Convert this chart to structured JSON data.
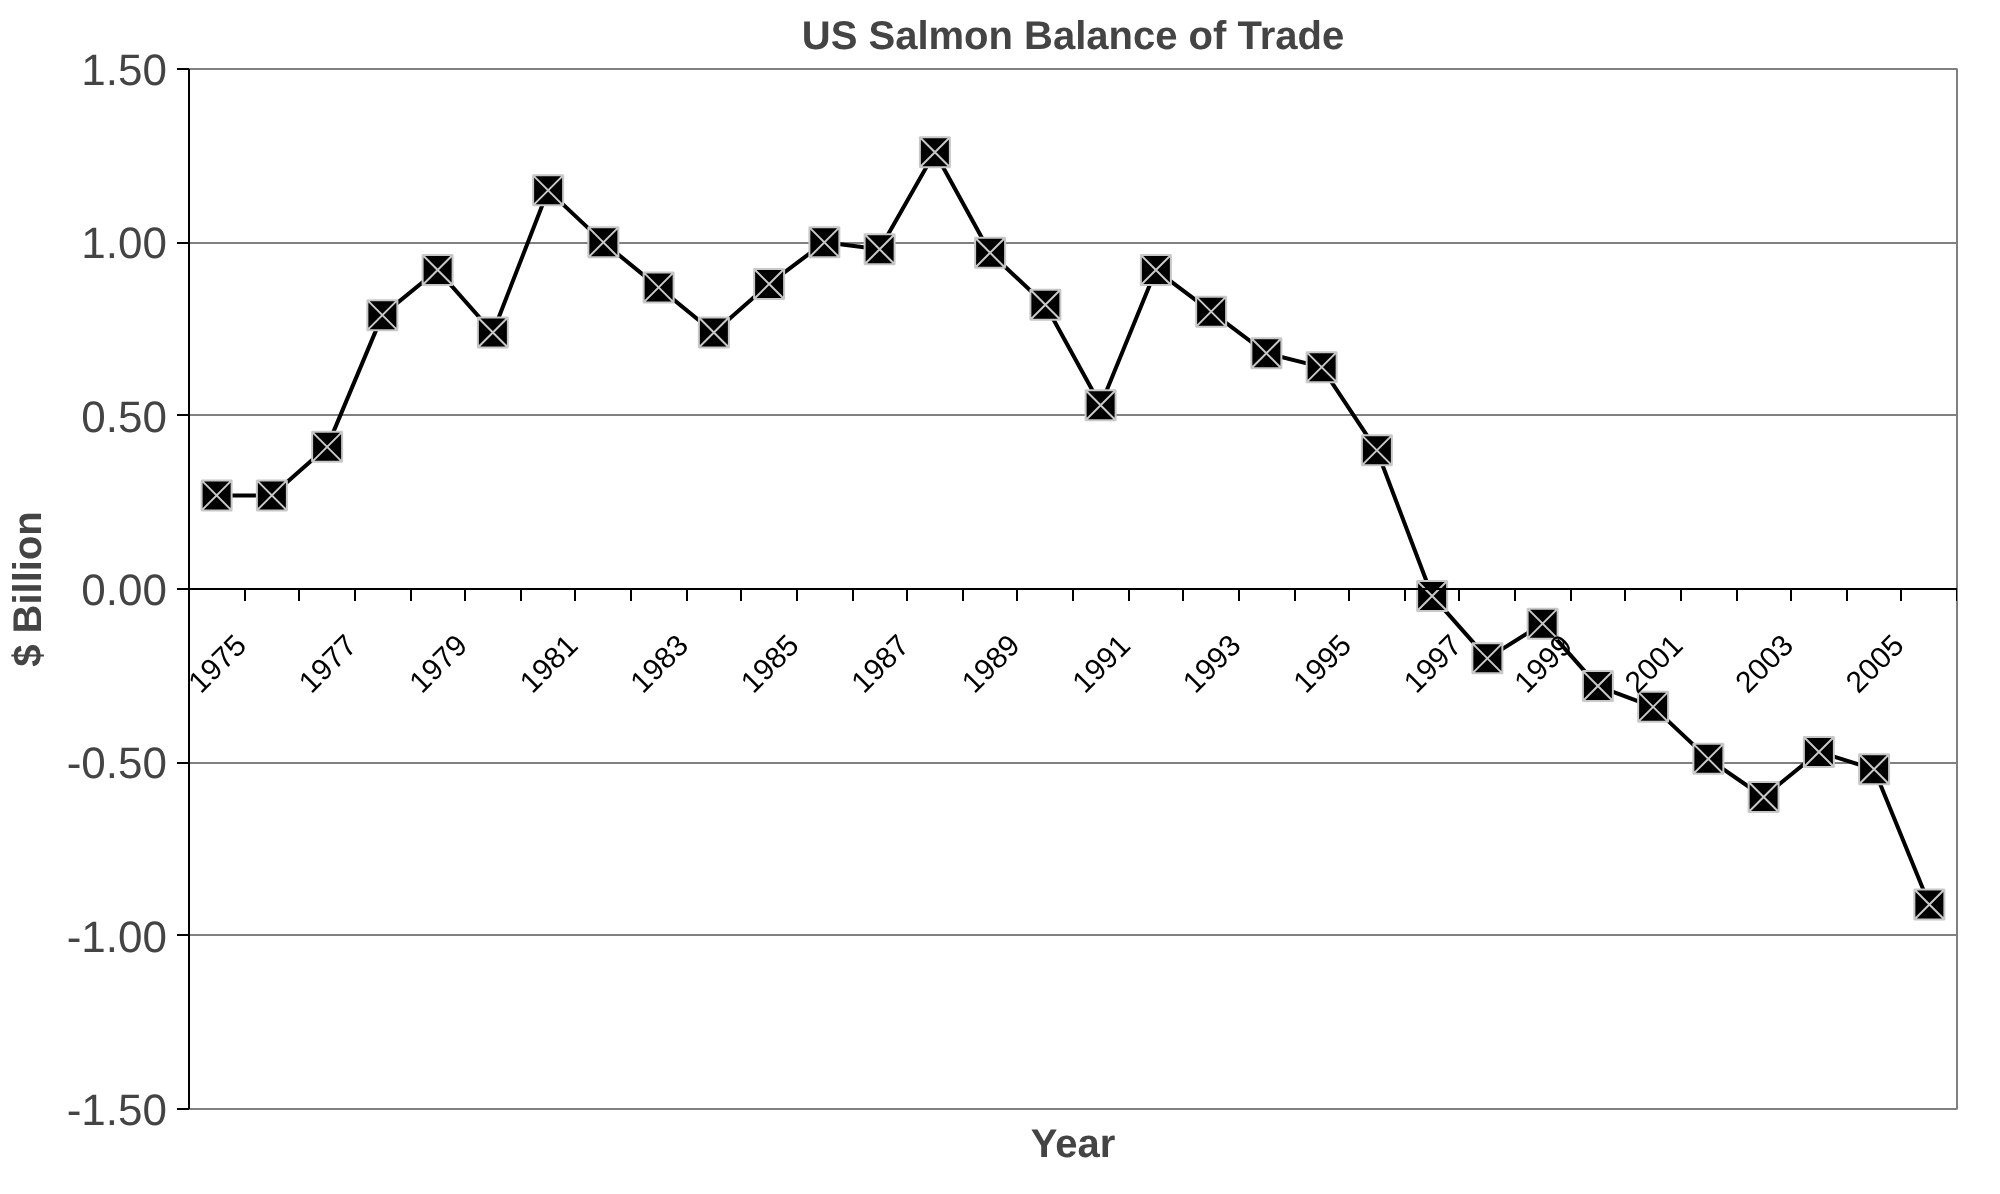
{
  "chart_data": {
    "type": "line",
    "title": "US Salmon Balance of Trade",
    "xlabel": "Year",
    "ylabel": "$ Billion",
    "categories": [
      "1975",
      null,
      "1977",
      null,
      "1979",
      null,
      "1981",
      null,
      "1983",
      null,
      "1985",
      null,
      "1987",
      null,
      "1989",
      null,
      "1991",
      null,
      "1993",
      null,
      "1995",
      null,
      "1997",
      null,
      "1999",
      null,
      "2001",
      null,
      "2003",
      null,
      "2005",
      null
    ],
    "series": [
      {
        "color": "#000000",
        "values": [
          0.27,
          0.27,
          0.41,
          0.79,
          0.92,
          0.74,
          1.15,
          1.0,
          0.87,
          0.74,
          0.88,
          1.0,
          0.98,
          1.26,
          0.97,
          0.82,
          0.53,
          0.92,
          0.8,
          0.68,
          0.64,
          0.4,
          -0.02,
          -0.2,
          -0.1,
          -0.28,
          -0.34,
          -0.49,
          -0.6,
          -0.47,
          -0.52,
          -0.91
        ]
      }
    ],
    "ylim": [
      -1.5,
      1.5
    ],
    "yticks": [
      {
        "value": -1.5,
        "label": "-1.50"
      },
      {
        "value": -1.0,
        "label": "-1.00"
      },
      {
        "value": -0.5,
        "label": "-0.50"
      },
      {
        "value": 0,
        "label": "0.00"
      },
      {
        "value": 0.5,
        "label": "0.50"
      },
      {
        "value": 1.0,
        "label": "1.00"
      },
      {
        "value": 1.5,
        "label": "1.50"
      }
    ],
    "grid": "y",
    "marker": "cross",
    "line_style": "solid"
  }
}
